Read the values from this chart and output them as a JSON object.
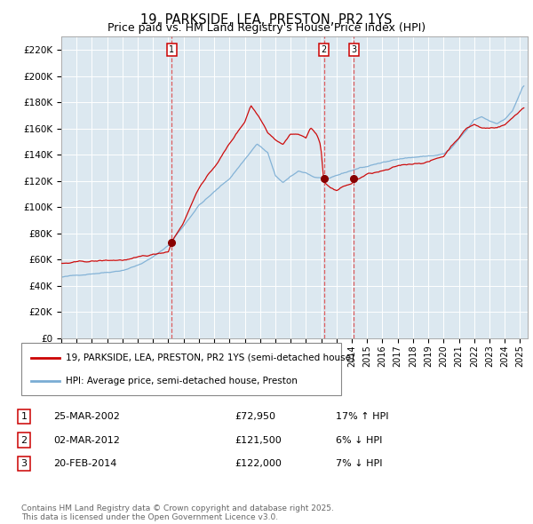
{
  "title": "19, PARKSIDE, LEA, PRESTON, PR2 1YS",
  "subtitle": "Price paid vs. HM Land Registry's House Price Index (HPI)",
  "title_fontsize": 10.5,
  "subtitle_fontsize": 9,
  "ylabel_ticks": [
    "£0",
    "£20K",
    "£40K",
    "£60K",
    "£80K",
    "£100K",
    "£120K",
    "£140K",
    "£160K",
    "£180K",
    "£200K",
    "£220K"
  ],
  "ytick_values": [
    0,
    20000,
    40000,
    60000,
    80000,
    100000,
    120000,
    140000,
    160000,
    180000,
    200000,
    220000
  ],
  "ylim": [
    0,
    230000
  ],
  "xlim_start": 1995.0,
  "xlim_end": 2025.5,
  "xtick_years": [
    1995,
    1996,
    1997,
    1998,
    1999,
    2000,
    2001,
    2002,
    2003,
    2004,
    2005,
    2006,
    2007,
    2008,
    2009,
    2010,
    2011,
    2012,
    2013,
    2014,
    2015,
    2016,
    2017,
    2018,
    2019,
    2020,
    2021,
    2022,
    2023,
    2024,
    2025
  ],
  "vline1_x": 2002.23,
  "vline2_x": 2012.17,
  "vline3_x": 2014.13,
  "marker1_x": 2002.23,
  "marker1_y": 72950,
  "marker2_x": 2012.17,
  "marker2_y": 121500,
  "marker3_x": 2014.13,
  "marker3_y": 122000,
  "sale_color": "#cc0000",
  "hpi_color": "#7aadd4",
  "vline_color": "#dd4444",
  "marker_color": "#880000",
  "background_color": "#dce8f0",
  "legend_label_sale": "19, PARKSIDE, LEA, PRESTON, PR2 1YS (semi-detached house)",
  "legend_label_hpi": "HPI: Average price, semi-detached house, Preston",
  "table_data": [
    {
      "num": "1",
      "date": "25-MAR-2002",
      "price": "£72,950",
      "hpi": "17% ↑ HPI"
    },
    {
      "num": "2",
      "date": "02-MAR-2012",
      "price": "£121,500",
      "hpi": "6% ↓ HPI"
    },
    {
      "num": "3",
      "date": "20-FEB-2014",
      "price": "£122,000",
      "hpi": "7% ↓ HPI"
    }
  ],
  "footer": "Contains HM Land Registry data © Crown copyright and database right 2025.\nThis data is licensed under the Open Government Licence v3.0."
}
